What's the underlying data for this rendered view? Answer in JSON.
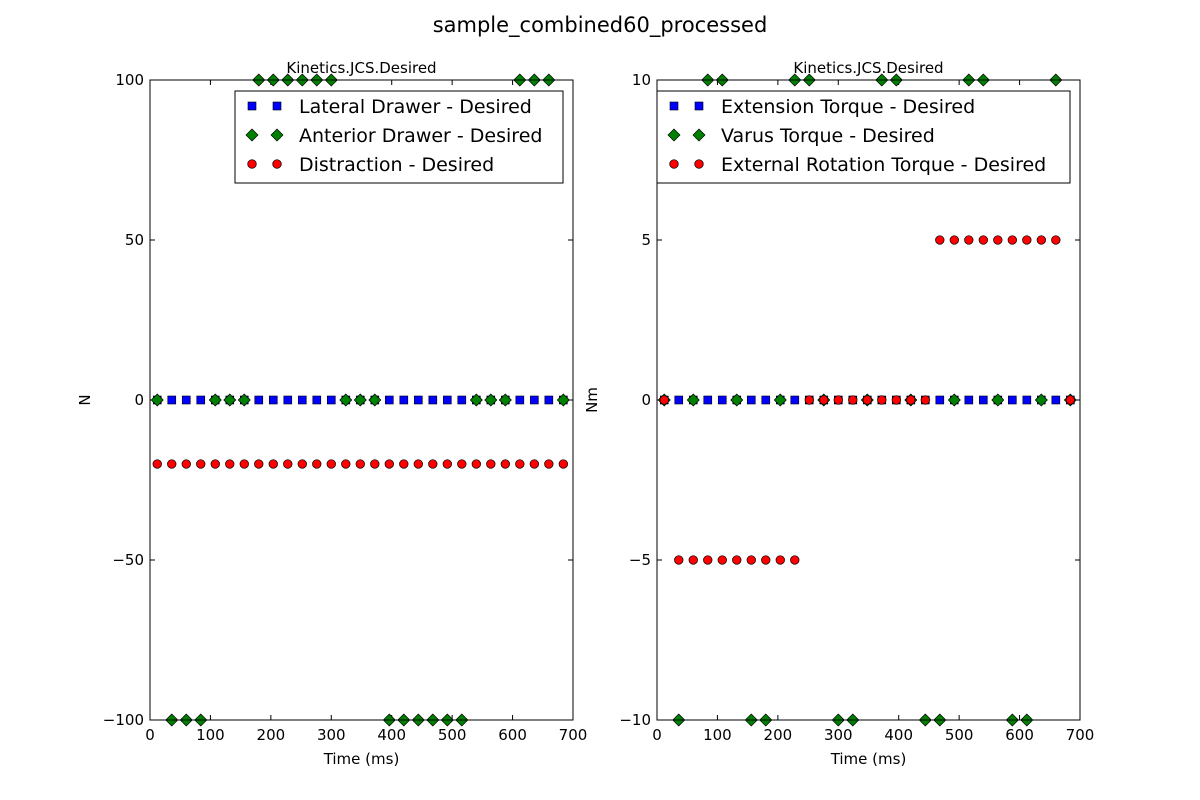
{
  "figure": {
    "title": "sample_combined60_processed"
  },
  "chart_data": [
    {
      "type": "scatter",
      "title": "Kinetics.JCS.Desired",
      "xlabel": "Time (ms)",
      "ylabel": "N",
      "xlim": [
        0,
        700
      ],
      "ylim": [
        -100,
        100
      ],
      "xticks": [
        "0",
        "100",
        "200",
        "300",
        "400",
        "500",
        "600",
        "700"
      ],
      "yticks": [
        "100",
        "50",
        "0",
        "−50",
        "−100"
      ],
      "legend_position": "upper-right",
      "series": [
        {
          "name": "Lateral Drawer - Desired",
          "marker": "square",
          "color": "#0000ff",
          "x": [
            12,
            36,
            60,
            84,
            108,
            132,
            156,
            180,
            204,
            228,
            252,
            276,
            300,
            324,
            348,
            372,
            396,
            420,
            444,
            468,
            492,
            516,
            540,
            564,
            588,
            612,
            636,
            660,
            684
          ],
          "y": [
            0,
            0,
            0,
            0,
            0,
            0,
            0,
            0,
            0,
            0,
            0,
            0,
            0,
            0,
            0,
            0,
            0,
            0,
            0,
            0,
            0,
            0,
            0,
            0,
            0,
            0,
            0,
            0,
            0
          ]
        },
        {
          "name": "Anterior Drawer - Desired",
          "marker": "diamond",
          "color": "#008000",
          "x": [
            12,
            36,
            60,
            84,
            108,
            132,
            156,
            180,
            204,
            228,
            252,
            276,
            300,
            324,
            348,
            372,
            396,
            420,
            444,
            468,
            492,
            516,
            540,
            564,
            588,
            612,
            636,
            660,
            684
          ],
          "y": [
            0,
            -100,
            -100,
            -100,
            0,
            0,
            0,
            100,
            100,
            100,
            100,
            100,
            100,
            0,
            0,
            0,
            -100,
            -100,
            -100,
            -100,
            -100,
            -100,
            0,
            0,
            0,
            100,
            100,
            100,
            0
          ]
        },
        {
          "name": "Distraction - Desired",
          "marker": "circle",
          "color": "#ff0000",
          "x": [
            12,
            36,
            60,
            84,
            108,
            132,
            156,
            180,
            204,
            228,
            252,
            276,
            300,
            324,
            348,
            372,
            396,
            420,
            444,
            468,
            492,
            516,
            540,
            564,
            588,
            612,
            636,
            660,
            684
          ],
          "y": [
            -20,
            -20,
            -20,
            -20,
            -20,
            -20,
            -20,
            -20,
            -20,
            -20,
            -20,
            -20,
            -20,
            -20,
            -20,
            -20,
            -20,
            -20,
            -20,
            -20,
            -20,
            -20,
            -20,
            -20,
            -20,
            -20,
            -20,
            -20,
            -20
          ]
        }
      ]
    },
    {
      "type": "scatter",
      "title": "Kinetics.JCS.Desired",
      "xlabel": "Time (ms)",
      "ylabel": "Nm",
      "xlim": [
        0,
        700
      ],
      "ylim": [
        -10,
        10
      ],
      "xticks": [
        "0",
        "100",
        "200",
        "300",
        "400",
        "500",
        "600",
        "700"
      ],
      "yticks": [
        "10",
        "5",
        "0",
        "−5",
        "−10"
      ],
      "legend_position": "upper-right",
      "series": [
        {
          "name": "Extension Torque - Desired",
          "marker": "square",
          "color": "#0000ff",
          "x": [
            12,
            36,
            60,
            84,
            108,
            132,
            156,
            180,
            204,
            228,
            252,
            276,
            300,
            324,
            348,
            372,
            396,
            420,
            444,
            468,
            492,
            516,
            540,
            564,
            588,
            612,
            636,
            660,
            684
          ],
          "y": [
            0,
            0,
            0,
            0,
            0,
            0,
            0,
            0,
            0,
            0,
            0,
            0,
            0,
            0,
            0,
            0,
            0,
            0,
            0,
            0,
            0,
            0,
            0,
            0,
            0,
            0,
            0,
            0,
            0
          ]
        },
        {
          "name": "Varus Torque - Desired",
          "marker": "diamond",
          "color": "#008000",
          "x": [
            12,
            36,
            60,
            84,
            108,
            132,
            156,
            180,
            204,
            228,
            252,
            276,
            300,
            324,
            348,
            372,
            396,
            420,
            444,
            468,
            492,
            516,
            540,
            564,
            588,
            612,
            636,
            660,
            684
          ],
          "y": [
            0,
            -10,
            0,
            10,
            10,
            0,
            -10,
            -10,
            0,
            10,
            10,
            0,
            -10,
            -10,
            0,
            10,
            10,
            0,
            -10,
            -10,
            0,
            10,
            10,
            0,
            -10,
            -10,
            0,
            10,
            0
          ]
        },
        {
          "name": "External Rotation Torque - Desired",
          "marker": "circle",
          "color": "#ff0000",
          "x": [
            12,
            36,
            60,
            84,
            108,
            132,
            156,
            180,
            204,
            228,
            252,
            276,
            300,
            324,
            348,
            372,
            396,
            420,
            444,
            468,
            492,
            516,
            540,
            564,
            588,
            612,
            636,
            660,
            684
          ],
          "y": [
            0,
            -5,
            -5,
            -5,
            -5,
            -5,
            -5,
            -5,
            -5,
            -5,
            0,
            0,
            0,
            0,
            0,
            0,
            0,
            0,
            0,
            5,
            5,
            5,
            5,
            5,
            5,
            5,
            5,
            5,
            0
          ]
        }
      ]
    }
  ]
}
